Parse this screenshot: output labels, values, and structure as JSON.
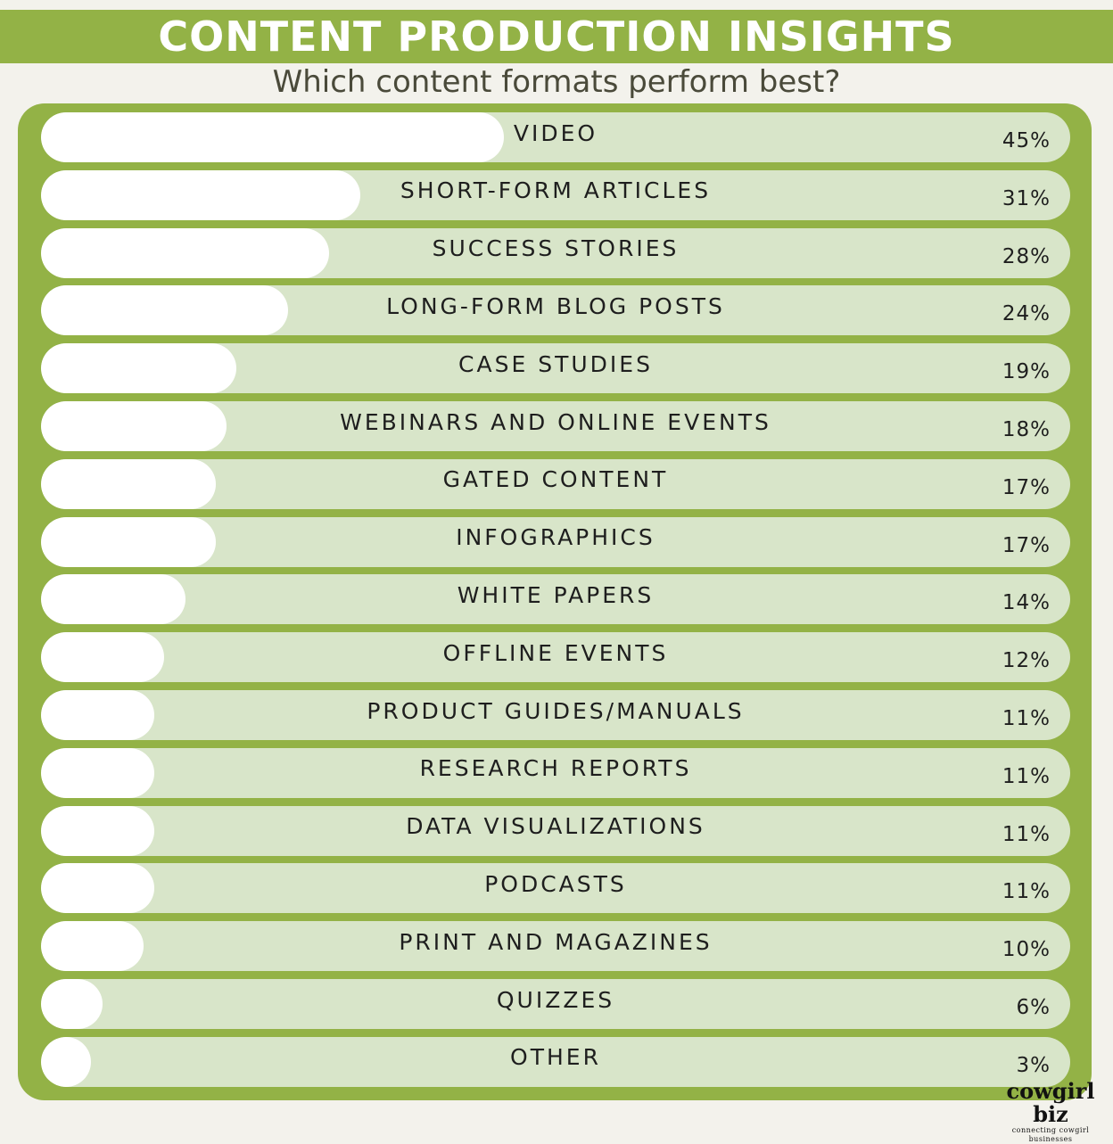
{
  "title": "CONTENT PRODUCTION INSIGHTS",
  "subtitle": "Which content formats perform best?",
  "colors": {
    "background": "#f3f2ec",
    "accent_green": "#93b246",
    "track": "#d8e5c9",
    "bar": "#ffffff",
    "text": "#1e1e1e"
  },
  "chart_data": {
    "type": "bar",
    "orientation": "horizontal",
    "title": "CONTENT PRODUCTION INSIGHTS",
    "subtitle": "Which content formats perform best?",
    "value_format": "percent",
    "categories": [
      "VIDEO",
      "SHORT-FORM ARTICLES",
      "SUCCESS STORIES",
      "LONG-FORM BLOG POSTS",
      "CASE STUDIES",
      "WEBINARS AND ONLINE EVENTS",
      "GATED CONTENT",
      "INFOGRAPHICS",
      "WHITE PAPERS",
      "OFFLINE EVENTS",
      "PRODUCT GUIDES/MANUALS",
      "RESEARCH REPORTS",
      "DATA VISUALIZATIONS",
      "PODCASTS",
      "PRINT AND MAGAZINES",
      "QUIZZES",
      "OTHER"
    ],
    "values": [
      45,
      31,
      28,
      24,
      19,
      18,
      17,
      17,
      14,
      12,
      11,
      11,
      11,
      11,
      10,
      6,
      3
    ],
    "value_labels": [
      "45%",
      "31%",
      "28%",
      "24%",
      "19%",
      "18%",
      "17%",
      "17%",
      "14%",
      "12%",
      "11%",
      "11%",
      "11%",
      "11%",
      "10%",
      "6%",
      "3%"
    ],
    "xlim": [
      0,
      100
    ],
    "grid": false,
    "legend": "none"
  },
  "logo": {
    "name": "cowgirl biz",
    "tagline": "connecting cowgirl businesses"
  }
}
